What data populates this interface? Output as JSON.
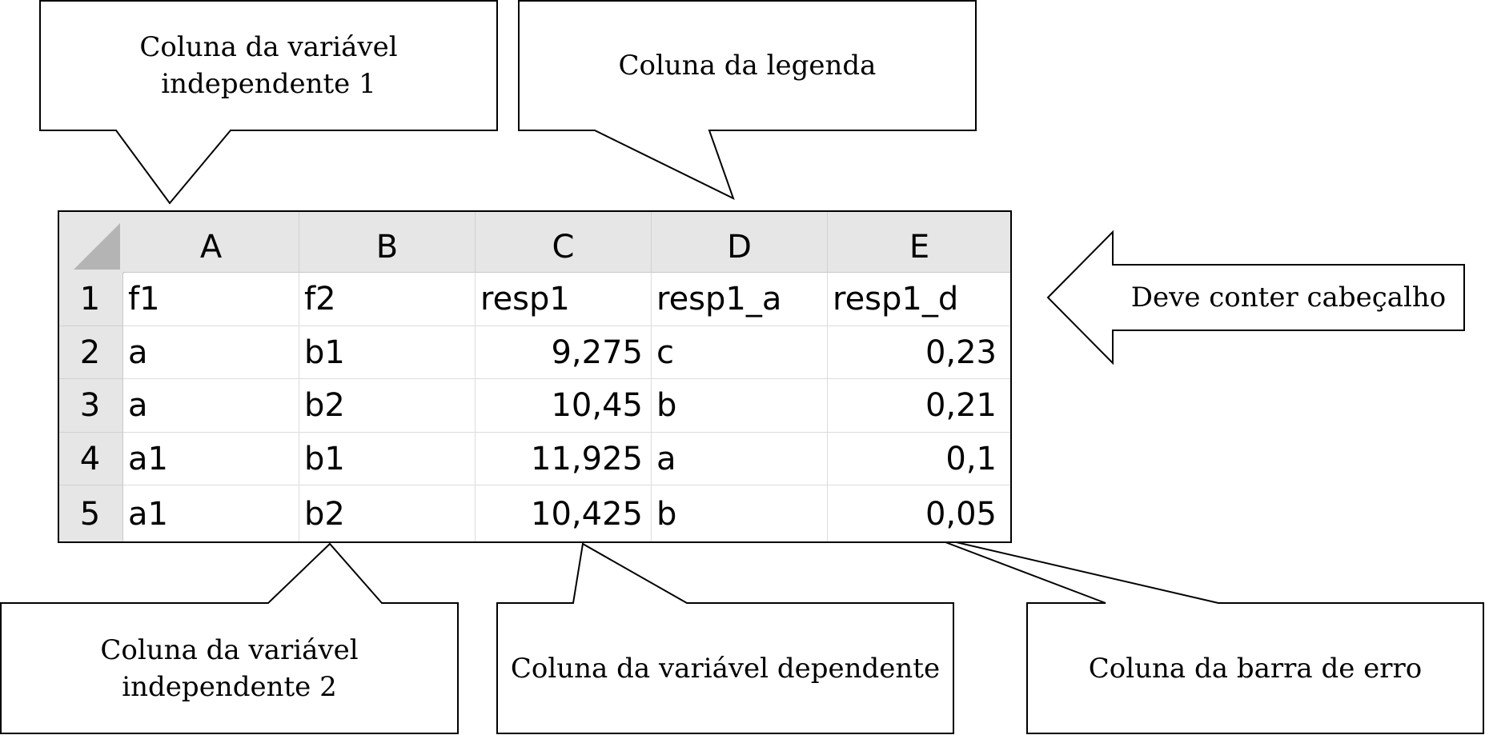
{
  "callouts": {
    "indep1": "Coluna da variável\nindependente 1",
    "legend": "Coluna da legenda",
    "header_note": "Deve conter cabeçalho",
    "indep2": "Coluna da variável\nindependente 2",
    "dependent": "Coluna da variável dependente",
    "error_bar": "Coluna da barra de erro"
  },
  "sheet": {
    "columns": [
      "A",
      "B",
      "C",
      "D",
      "E"
    ],
    "rows": [
      "1",
      "2",
      "3",
      "4",
      "5"
    ],
    "cells": [
      [
        "f1",
        "f2",
        "resp1",
        "resp1_a",
        "resp1_d"
      ],
      [
        "a",
        "b1",
        "9,275",
        "c",
        "0,23"
      ],
      [
        "a",
        "b2",
        "10,45",
        "b",
        "0,21"
      ],
      [
        "a1",
        "b1",
        "11,925",
        "a",
        "0,1"
      ],
      [
        "a1",
        "b2",
        "10,425",
        "b",
        "0,05"
      ]
    ]
  }
}
